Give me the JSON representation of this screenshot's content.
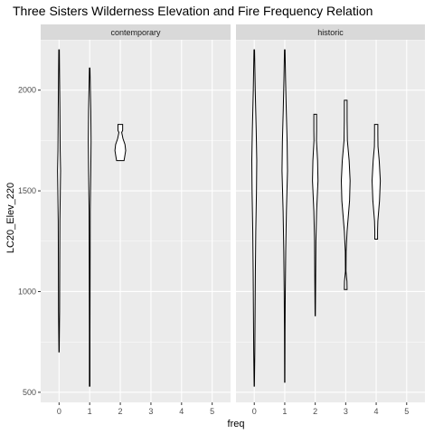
{
  "chart_data": {
    "type": "violin",
    "title": "Three Sisters Wilderness Elevation and Fire Frequency Relation",
    "xlabel": "freq",
    "ylabel": "LC20_Elev_220",
    "x_categories": [
      "0",
      "1",
      "2",
      "3",
      "4",
      "5"
    ],
    "yticks": [
      500,
      1000,
      1500,
      2000
    ],
    "ylim": [
      450,
      2250
    ],
    "grid": true,
    "facets": [
      {
        "name": "contemporary",
        "violins": [
          {
            "x": 0,
            "profile": [
              [
                700,
                0.01
              ],
              [
                900,
                0.04
              ],
              [
                1150,
                0.05
              ],
              [
                1350,
                0.06
              ],
              [
                1600,
                0.11
              ],
              [
                1700,
                0.08
              ],
              [
                1900,
                0.06
              ],
              [
                2050,
                0.04
              ],
              [
                2200,
                0.02
              ]
            ]
          },
          {
            "x": 1,
            "profile": [
              [
                530,
                0.02
              ],
              [
                800,
                0.02
              ],
              [
                1100,
                0.03
              ],
              [
                1400,
                0.04
              ],
              [
                1600,
                0.08
              ],
              [
                1750,
                0.1
              ],
              [
                1900,
                0.08
              ],
              [
                2000,
                0.05
              ],
              [
                2110,
                0.02
              ]
            ]
          },
          {
            "x": 2,
            "profile": [
              [
                1650,
                0.27
              ],
              [
                1670,
                0.32
              ],
              [
                1700,
                0.39
              ],
              [
                1730,
                0.34
              ],
              [
                1760,
                0.19
              ],
              [
                1790,
                0.1
              ],
              [
                1800,
                0.17
              ],
              [
                1830,
                0.17
              ]
            ]
          }
        ]
      },
      {
        "name": "historic",
        "violins": [
          {
            "x": 0,
            "profile": [
              [
                530,
                0.01
              ],
              [
                700,
                0.04
              ],
              [
                900,
                0.06
              ],
              [
                1100,
                0.08
              ],
              [
                1300,
                0.11
              ],
              [
                1500,
                0.16
              ],
              [
                1650,
                0.18
              ],
              [
                1800,
                0.14
              ],
              [
                2000,
                0.07
              ],
              [
                2200,
                0.02
              ]
            ]
          },
          {
            "x": 1,
            "profile": [
              [
                550,
                0.01
              ],
              [
                800,
                0.02
              ],
              [
                1000,
                0.04
              ],
              [
                1200,
                0.07
              ],
              [
                1400,
                0.12
              ],
              [
                1600,
                0.2
              ],
              [
                1750,
                0.17
              ],
              [
                1900,
                0.11
              ],
              [
                2050,
                0.06
              ],
              [
                2200,
                0.02
              ]
            ]
          },
          {
            "x": 2,
            "profile": [
              [
                880,
                0.01
              ],
              [
                1050,
                0.03
              ],
              [
                1250,
                0.05
              ],
              [
                1400,
                0.1
              ],
              [
                1550,
                0.2
              ],
              [
                1650,
                0.17
              ],
              [
                1750,
                0.09
              ],
              [
                1800,
                0.1
              ],
              [
                1880,
                0.1
              ]
            ]
          },
          {
            "x": 3,
            "profile": [
              [
                1010,
                0.1
              ],
              [
                1050,
                0.09
              ],
              [
                1100,
                0.02
              ],
              [
                1200,
                0.03
              ],
              [
                1300,
                0.1
              ],
              [
                1450,
                0.28
              ],
              [
                1550,
                0.32
              ],
              [
                1650,
                0.25
              ],
              [
                1750,
                0.12
              ],
              [
                1850,
                0.1
              ],
              [
                1950,
                0.1
              ]
            ]
          },
          {
            "x": 4,
            "profile": [
              [
                1260,
                0.1
              ],
              [
                1300,
                0.1
              ],
              [
                1350,
                0.12
              ],
              [
                1450,
                0.24
              ],
              [
                1550,
                0.3
              ],
              [
                1650,
                0.22
              ],
              [
                1720,
                0.13
              ],
              [
                1780,
                0.12
              ],
              [
                1830,
                0.12
              ]
            ]
          }
        ]
      }
    ]
  }
}
